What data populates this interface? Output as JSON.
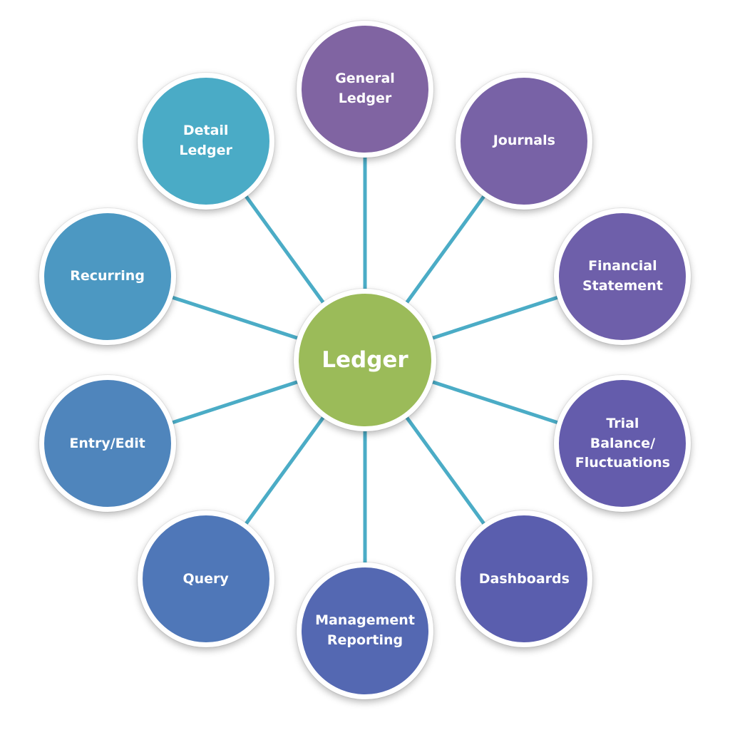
{
  "colors": {
    "connector": "#4BACC6",
    "center_fill": "#9BBB59",
    "node_border": "#FFFFFF"
  },
  "center": {
    "label": "Ledger",
    "color": "#9BBB59"
  },
  "nodes": [
    {
      "id": "general-ledger",
      "label": "General\nLedger",
      "color": "#8064A2"
    },
    {
      "id": "journals",
      "label": "Journals",
      "color": "#7862A6"
    },
    {
      "id": "financial-statement",
      "label": "Financial\nStatement",
      "color": "#6E5FAA"
    },
    {
      "id": "trial-balance-fluctuations",
      "label": "Trial\nBalance/\nFluctuations",
      "color": "#645CAC"
    },
    {
      "id": "dashboards",
      "label": "Dashboards",
      "color": "#5A5EAE"
    },
    {
      "id": "management-reporting",
      "label": "Management\nReporting",
      "color": "#5468B2"
    },
    {
      "id": "query",
      "label": "Query",
      "color": "#4F77B8"
    },
    {
      "id": "entry-edit",
      "label": "Entry/Edit",
      "color": "#4F85BC"
    },
    {
      "id": "recurring",
      "label": "Recurring",
      "color": "#4C98C2"
    },
    {
      "id": "detail-ledger",
      "label": "Detail\nLedger",
      "color": "#4AABC6"
    }
  ]
}
